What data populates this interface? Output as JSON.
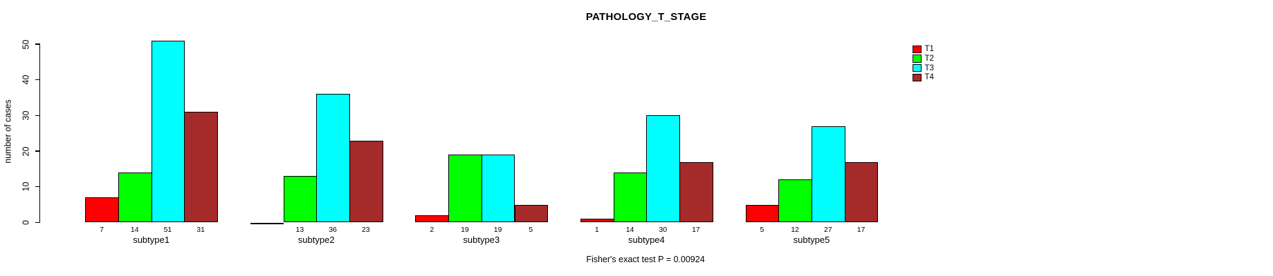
{
  "chart_data": {
    "type": "bar",
    "title": "PATHOLOGY_T_STAGE",
    "ylabel": "number of cases",
    "xlabel": "",
    "annotation": "Fisher's exact test P = 0.00924",
    "categories": [
      "subtype1",
      "subtype2",
      "subtype3",
      "subtype4",
      "subtype5"
    ],
    "series": [
      {
        "name": "T1",
        "color": "#FF0000",
        "values": [
          7,
          0,
          2,
          1,
          5
        ]
      },
      {
        "name": "T2",
        "color": "#00FF00",
        "values": [
          14,
          13,
          19,
          14,
          12
        ]
      },
      {
        "name": "T3",
        "color": "#00FFFF",
        "values": [
          51,
          36,
          19,
          30,
          27
        ]
      },
      {
        "name": "T4",
        "color": "#A52A2A",
        "values": [
          31,
          23,
          5,
          17,
          17
        ]
      }
    ],
    "bar_value_labels_shown": true,
    "zero_value_labels_hidden": true,
    "y_ticks": [
      0,
      10,
      20,
      30,
      40,
      50
    ],
    "ylim": [
      0,
      50
    ],
    "grid": false,
    "legend_position": "right",
    "legend_entries": [
      "T1",
      "T2",
      "T3",
      "T4"
    ],
    "bar_border_color": "#000000",
    "background_color": "#FFFFFF",
    "text_color": "#000000"
  }
}
